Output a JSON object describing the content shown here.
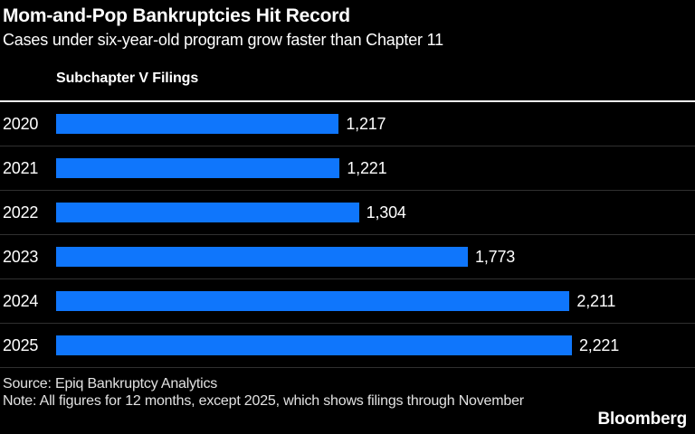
{
  "header": {
    "title": "Mom-and-Pop Bankruptcies Hit Record",
    "subtitle": "Cases under six-year-old program grow faster than Chapter 11"
  },
  "chart_data": {
    "type": "bar",
    "orientation": "horizontal",
    "title": "Subchapter V Filings",
    "categories": [
      "2020",
      "2021",
      "2022",
      "2023",
      "2024",
      "2025"
    ],
    "values": [
      1217,
      1221,
      1304,
      1773,
      2211,
      2221
    ],
    "value_labels": [
      "1,217",
      "1,221",
      "1,304",
      "1,773",
      "2,211",
      "2,221"
    ],
    "xlim": [
      0,
      2221
    ],
    "grid": false,
    "legend": false,
    "bar_color": "#0f76fc"
  },
  "footer": {
    "source": "Source: Epiq Bankruptcy Analytics",
    "note": "Note: All figures for 12 months, except 2025, which shows filings through November",
    "brand": "Bloomberg"
  },
  "colors": {
    "background": "#000000",
    "bar": "#0f76fc",
    "text": "#ffffff",
    "muted_text": "#e2e2e2",
    "top_rule": "#f2f2f2",
    "row_separator": "#303030"
  }
}
